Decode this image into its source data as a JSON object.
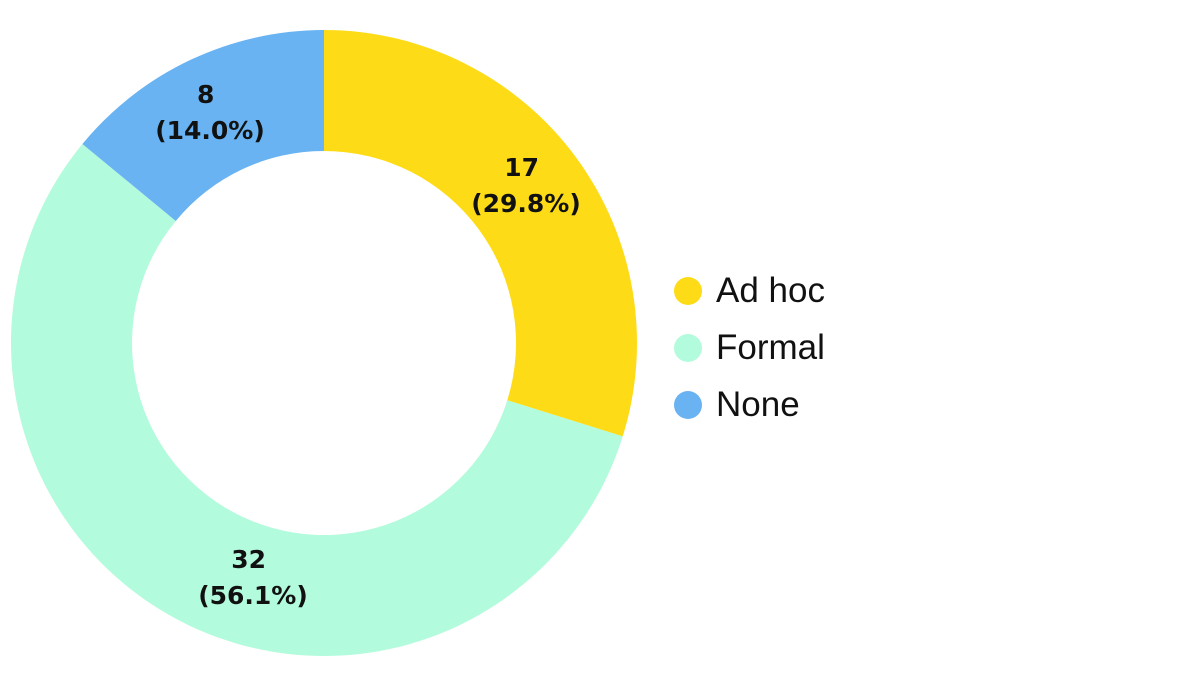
{
  "chart_data": {
    "type": "pie",
    "variant": "donut",
    "title": "",
    "categories": [
      "Ad hoc",
      "Formal",
      "None"
    ],
    "values": [
      17,
      32,
      8
    ],
    "percentages": [
      "29.8%",
      "56.1%",
      "14.0%"
    ],
    "colors": [
      "#FDDC17",
      "#B3FBDD",
      "#69B3F2"
    ],
    "legend_position": "right",
    "start_angle_deg": 0,
    "direction": "clockwise"
  },
  "labels": [
    {
      "value": "17",
      "pct": "(29.8%)"
    },
    {
      "value": "32",
      "pct": "(56.1%)"
    },
    {
      "value": "8",
      "pct": "(14.0%)"
    }
  ],
  "legend": [
    {
      "label": "Ad hoc",
      "color": "#FDDC17"
    },
    {
      "label": "Formal",
      "color": "#B3FBDD"
    },
    {
      "label": "None",
      "color": "#69B3F2"
    }
  ]
}
